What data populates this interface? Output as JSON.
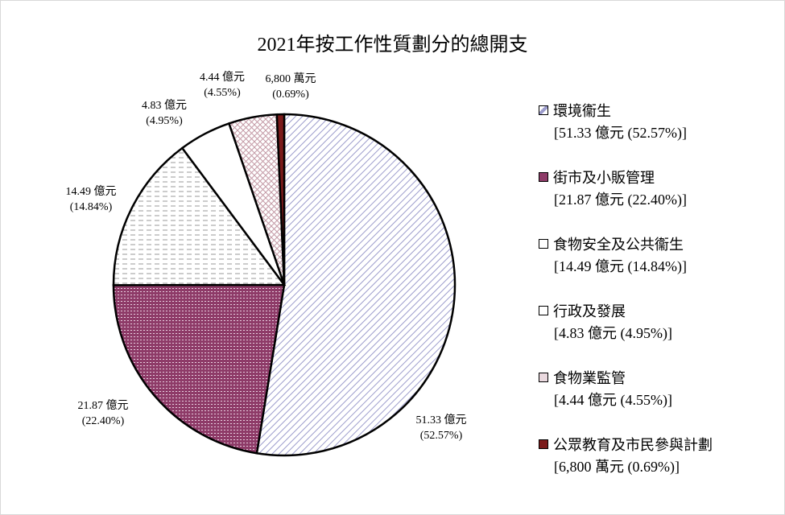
{
  "chart_data": {
    "type": "pie",
    "title": "2021年按工作性質劃分的總開支",
    "start": "top",
    "direction": "clockwise",
    "slices": [
      {
        "name": "環境衞生",
        "value_label": "51.33 億元",
        "pct_label": "(52.57%)",
        "legend_value": "[51.33 億元 (52.57%)]",
        "percent": 52.57,
        "color": "#9c9ccc",
        "pattern": "diagonal"
      },
      {
        "name": "街市及小販管理",
        "value_label": "21.87 億元",
        "pct_label": "(22.40%)",
        "legend_value": "[21.87 億元 (22.40%)]",
        "percent": 22.4,
        "color": "#8e3b68",
        "pattern": "dense"
      },
      {
        "name": "食物安全及公共衞生",
        "value_label": "14.49 億元",
        "pct_label": "(14.84%)",
        "legend_value": "[14.49 億元 (14.84%)]",
        "percent": 14.84,
        "color": "#888888",
        "pattern": "dash"
      },
      {
        "name": "行政及發展",
        "value_label": "4.83 億元",
        "pct_label": "(4.95%)",
        "legend_value": "[4.83 億元 (4.95%)]",
        "percent": 4.95,
        "color": "#ffffff",
        "pattern": "none"
      },
      {
        "name": "食物業監管",
        "value_label": "4.44 億元",
        "pct_label": "(4.55%)",
        "legend_value": "[4.44 億元 (4.55%)]",
        "percent": 4.55,
        "color": "#c49aa6",
        "pattern": "cross"
      },
      {
        "name": "公眾教育及市民參與計劃",
        "value_label": "6,800 萬元",
        "pct_label": "(0.69%)",
        "legend_value": "[6,800 萬元 (0.69%)]",
        "percent": 0.69,
        "color": "#7b1a1a",
        "pattern": "solid"
      }
    ],
    "legend_position": "right"
  }
}
